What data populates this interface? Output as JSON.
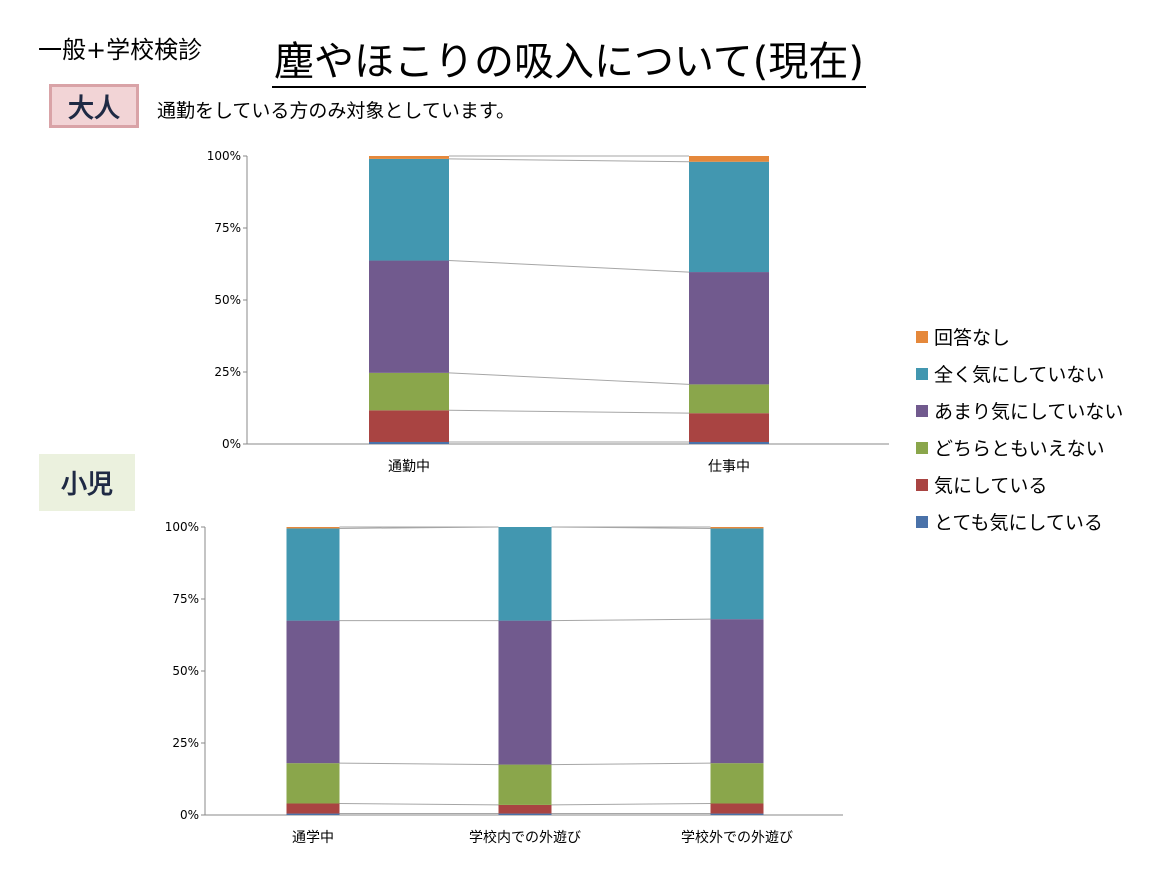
{
  "header": {
    "subtitle": "一般+学校検診",
    "title": "塵やほこりの吸入について(現在)"
  },
  "adult_section": {
    "badge": "大人",
    "note": "通勤をしている方のみ対象としています。"
  },
  "child_section": {
    "badge": "小児"
  },
  "legend": [
    {
      "label": "回答なし",
      "color": "#e5883b"
    },
    {
      "label": "全く気にしていない",
      "color": "#4297b0"
    },
    {
      "label": "あまり気にしていない",
      "color": "#715a8e"
    },
    {
      "label": "どちらともいえない",
      "color": "#8aa64b"
    },
    {
      "label": "気にしている",
      "color": "#a94442"
    },
    {
      "label": "とても気にしている",
      "color": "#4a72a9"
    }
  ],
  "chart_data": [
    {
      "type": "bar",
      "stacked": "percent",
      "categories": [
        "通勤中",
        "仕事中"
      ],
      "yticks": [
        "0%",
        "25%",
        "50%",
        "75%",
        "100%"
      ],
      "ylim": [
        0,
        100
      ],
      "series": [
        {
          "name": "とても気にしている",
          "values": [
            0.7,
            0.7
          ]
        },
        {
          "name": "気にしている",
          "values": [
            11,
            10
          ]
        },
        {
          "name": "どちらともいえない",
          "values": [
            13,
            10
          ]
        },
        {
          "name": "あまり気にしていない",
          "values": [
            39,
            39
          ]
        },
        {
          "name": "全く気にしていない",
          "values": [
            35.3,
            38.3
          ]
        },
        {
          "name": "回答なし",
          "values": [
            1,
            2
          ]
        }
      ]
    },
    {
      "type": "bar",
      "stacked": "percent",
      "categories": [
        "通学中",
        "学校内での外遊び",
        "学校外での外遊び"
      ],
      "yticks": [
        "0%",
        "25%",
        "50%",
        "75%",
        "100%"
      ],
      "ylim": [
        0,
        100
      ],
      "series": [
        {
          "name": "とても気にしている",
          "values": [
            0.5,
            0.5,
            0.5
          ]
        },
        {
          "name": "気にしている",
          "values": [
            3.5,
            3,
            3.5
          ]
        },
        {
          "name": "どちらともいえない",
          "values": [
            14,
            14,
            14
          ]
        },
        {
          "name": "あまり気にしていない",
          "values": [
            49.5,
            50,
            50
          ]
        },
        {
          "name": "全く気にしていない",
          "values": [
            32,
            32.5,
            31.5
          ]
        },
        {
          "name": "回答なし",
          "values": [
            0.5,
            0,
            0.5
          ]
        }
      ]
    }
  ]
}
